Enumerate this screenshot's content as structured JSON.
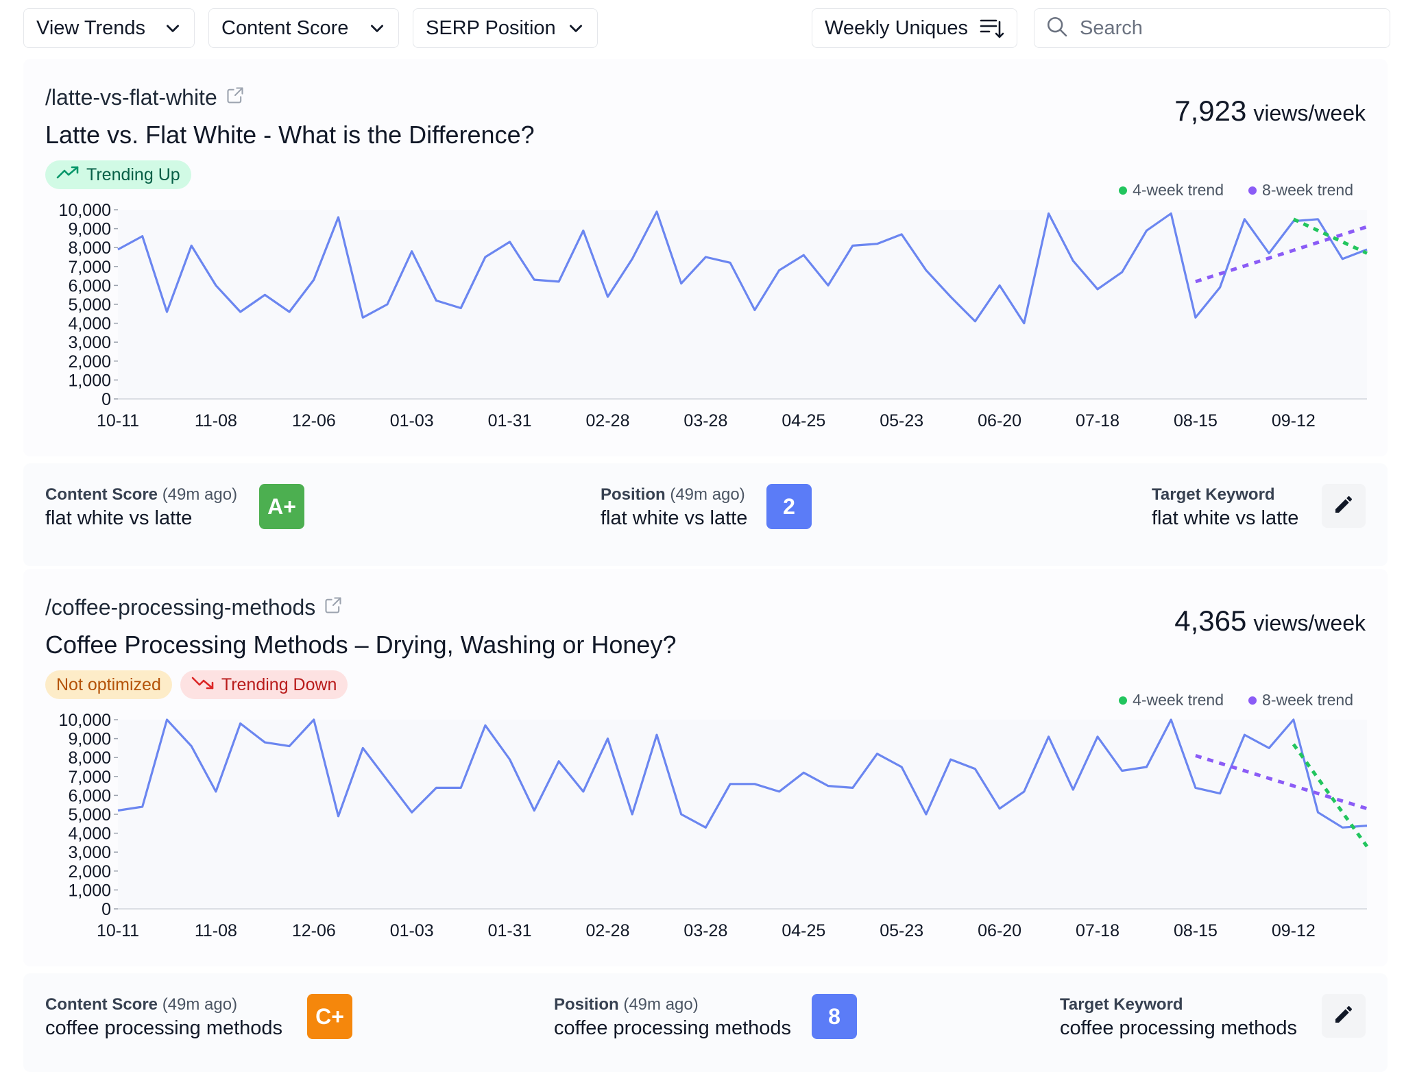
{
  "toolbar": {
    "view_trends": "View Trends",
    "content_score": "Content Score",
    "serp_position": "SERP Position",
    "weekly_uniques": "Weekly Uniques",
    "search_placeholder": "Search"
  },
  "colors": {
    "series": "#6b86f0",
    "trend4": "#22c55e",
    "trend8": "#8b5cf6",
    "grade_a": "#4caf50",
    "grade_c": "#f5870c",
    "position_badge": "#5b7cf7"
  },
  "cards": [
    {
      "path": "/latte-vs-flat-white",
      "title": "Latte vs. Flat White - What is the Difference?",
      "badges": [
        {
          "label": "Trending Up",
          "kind": "up",
          "icon": "trending-up-icon"
        }
      ],
      "views_number": "7,923",
      "views_unit": "views/week",
      "footer": {
        "content_score_label": "Content Score",
        "content_score_time": "(49m ago)",
        "content_score_keyword": "flat white vs latte",
        "grade": "A+",
        "position_label": "Position",
        "position_time": "(49m ago)",
        "position_keyword": "flat white vs latte",
        "position": "2",
        "target_label": "Target Keyword",
        "target_keyword": "flat white vs latte"
      }
    },
    {
      "path": "/coffee-processing-methods",
      "title": "Coffee Processing Methods – Drying, Washing or Honey?",
      "badges": [
        {
          "label": "Not optimized",
          "kind": "warn",
          "icon": ""
        },
        {
          "label": "Trending Down",
          "kind": "down",
          "icon": "trending-down-icon"
        }
      ],
      "views_number": "4,365",
      "views_unit": "views/week",
      "footer": {
        "content_score_label": "Content Score",
        "content_score_time": "(49m ago)",
        "content_score_keyword": "coffee processing methods",
        "grade": "C+",
        "position_label": "Position",
        "position_time": "(49m ago)",
        "position_keyword": "coffee processing methods",
        "position": "8",
        "target_label": "Target Keyword",
        "target_keyword": "coffee processing methods"
      }
    }
  ],
  "chart_data": [
    {
      "type": "line",
      "legend": [
        "4-week trend",
        "8-week trend"
      ],
      "legend_position": "top-right",
      "grid": false,
      "ylim": [
        0,
        10000
      ],
      "yticks": [
        "0",
        "1,000",
        "2,000",
        "3,000",
        "4,000",
        "5,000",
        "6,000",
        "7,000",
        "8,000",
        "9,000",
        "10,000"
      ],
      "xticks": [
        "10-11",
        "11-08",
        "12-06",
        "01-03",
        "01-31",
        "02-28",
        "03-28",
        "04-25",
        "05-23",
        "06-20",
        "07-18",
        "08-15",
        "09-12"
      ],
      "series": [
        {
          "values": [
            7900,
            8600,
            4600,
            8100,
            6000,
            4600,
            5500,
            4600,
            6300,
            9600,
            4300,
            5000,
            7800,
            5200,
            4800,
            7500,
            8300,
            6300,
            6200,
            8900,
            5400,
            7400,
            9900,
            6100,
            7500,
            7200,
            4700,
            6800,
            7600,
            6000,
            8100,
            8200,
            8700,
            6800,
            5400,
            4100,
            6000,
            4000,
            9800,
            7300,
            5800,
            6700,
            8900,
            9800,
            4300,
            5900,
            9500,
            7700,
            9400,
            9500,
            7400,
            7900
          ]
        }
      ],
      "trend_4week": {
        "from_week": 48,
        "to_week": 51,
        "values": [
          9500,
          7700
        ]
      },
      "trend_8week": {
        "from_week": 44,
        "to_week": 51,
        "values": [
          6200,
          9100
        ]
      }
    },
    {
      "type": "line",
      "legend": [
        "4-week trend",
        "8-week trend"
      ],
      "legend_position": "top-right",
      "grid": false,
      "ylim": [
        0,
        10000
      ],
      "yticks": [
        "0",
        "1,000",
        "2,000",
        "3,000",
        "4,000",
        "5,000",
        "6,000",
        "7,000",
        "8,000",
        "9,000",
        "10,000"
      ],
      "xticks": [
        "10-11",
        "11-08",
        "12-06",
        "01-03",
        "01-31",
        "02-28",
        "03-28",
        "04-25",
        "05-23",
        "06-20",
        "07-18",
        "08-15",
        "09-12"
      ],
      "series": [
        {
          "values": [
            5200,
            5400,
            10000,
            8600,
            6200,
            9800,
            8800,
            8600,
            10000,
            4900,
            8500,
            6800,
            5100,
            6400,
            6400,
            9700,
            7900,
            5200,
            7800,
            6200,
            9000,
            5000,
            9200,
            5000,
            4300,
            6600,
            6600,
            6200,
            7200,
            6500,
            6400,
            8200,
            7500,
            5000,
            7900,
            7400,
            5300,
            6200,
            9100,
            6300,
            9100,
            7300,
            7500,
            10000,
            6400,
            6100,
            9200,
            8500,
            10000,
            5100,
            4300,
            4400
          ]
        }
      ],
      "trend_4week": {
        "from_week": 48,
        "to_week": 51,
        "values": [
          8700,
          3300
        ]
      },
      "trend_8week": {
        "from_week": 44,
        "to_week": 51,
        "values": [
          8100,
          5300
        ]
      }
    }
  ]
}
